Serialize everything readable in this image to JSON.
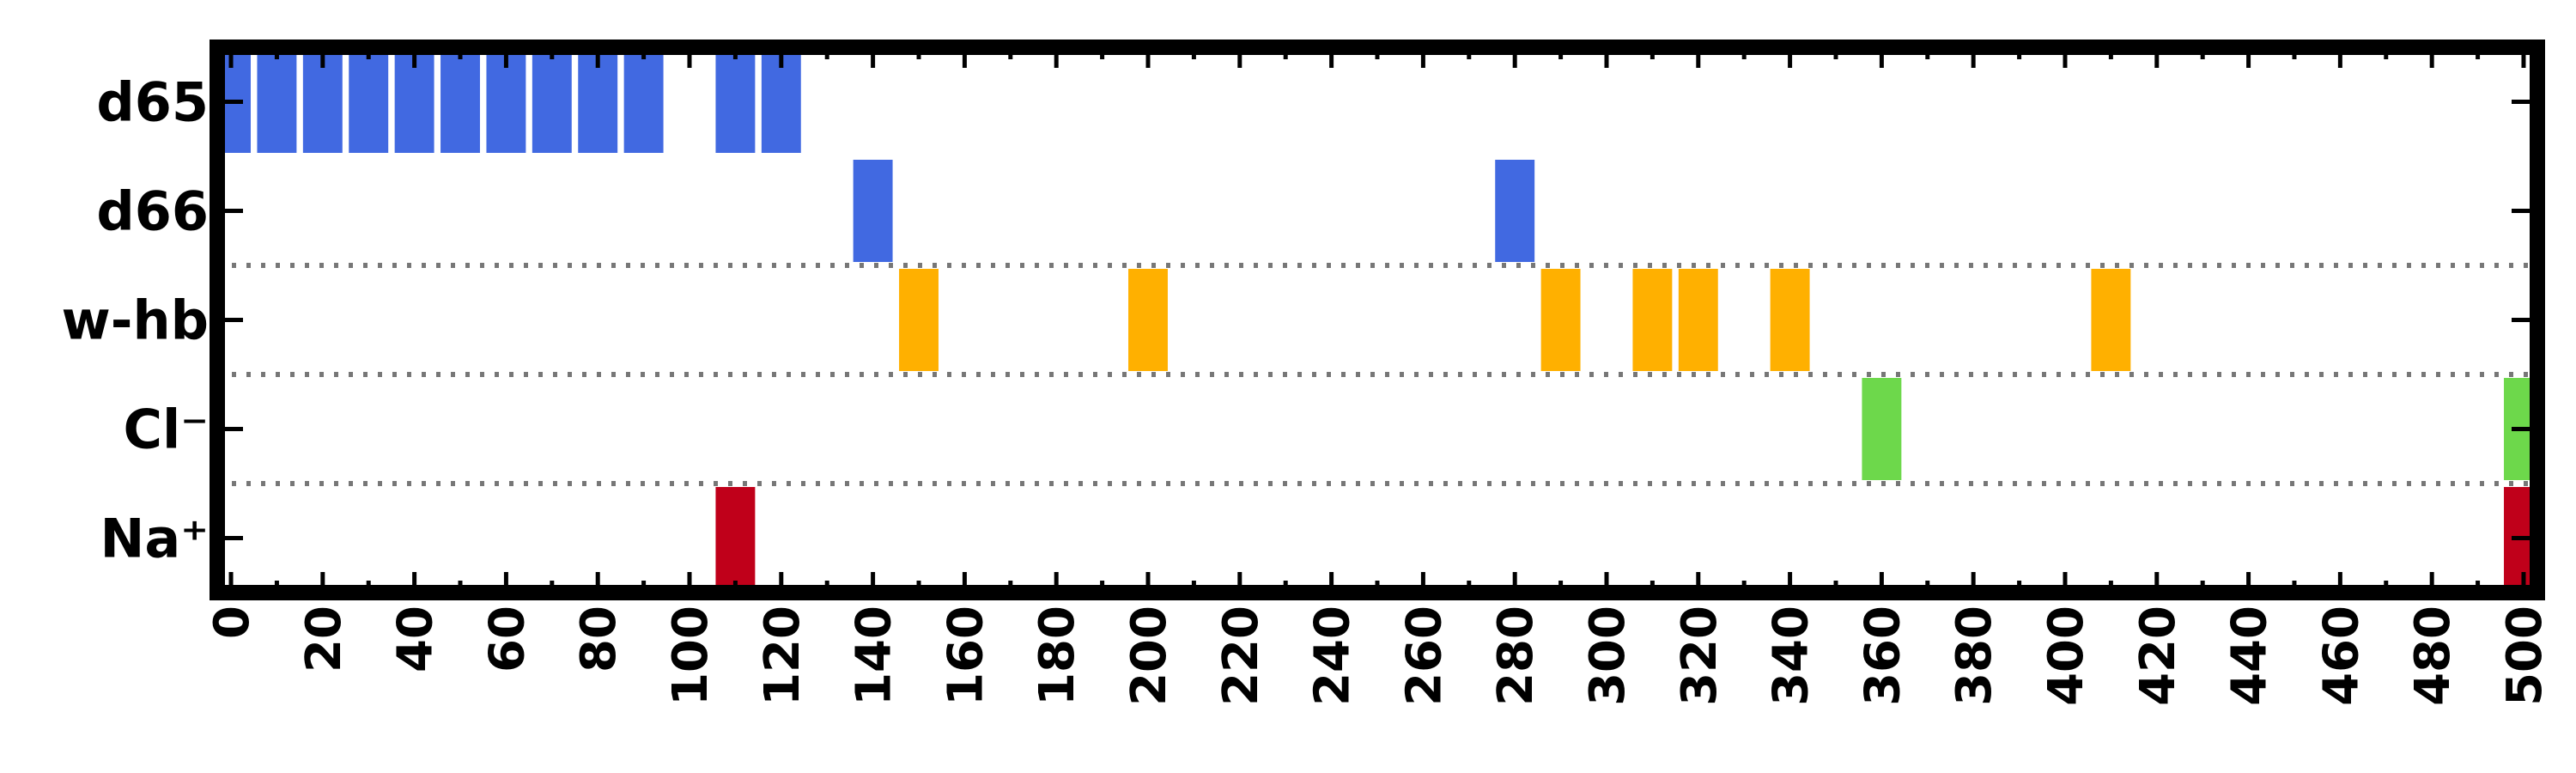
{
  "chart_data": {
    "type": "timeline",
    "rows": [
      {
        "label": "d65",
        "color": "#4169E1",
        "x": [
          0,
          10,
          20,
          30,
          40,
          50,
          60,
          70,
          80,
          90,
          110,
          120
        ]
      },
      {
        "label": "d66",
        "color": "#4169E1",
        "x": [
          140,
          280
        ]
      },
      {
        "label": "w-hb",
        "color": "#FFB000",
        "x": [
          150,
          200,
          290,
          310,
          320,
          340,
          410
        ]
      },
      {
        "label": "Cl⁻",
        "color": "#6DD84B",
        "x": [
          360,
          500
        ]
      },
      {
        "label": "Na⁺",
        "color": "#C0001A",
        "x": [
          110,
          500
        ]
      }
    ],
    "xlim": [
      -3,
      503
    ],
    "xticks": [
      0,
      20,
      40,
      60,
      80,
      100,
      120,
      140,
      160,
      180,
      200,
      220,
      240,
      260,
      280,
      300,
      320,
      340,
      360,
      380,
      400,
      420,
      440,
      460,
      480,
      500
    ],
    "xminor_step": 10,
    "bar_width": 8.6,
    "separators_after_rows": [
      1,
      2,
      3
    ],
    "xlabel": "",
    "ylabel": "",
    "title": ""
  }
}
